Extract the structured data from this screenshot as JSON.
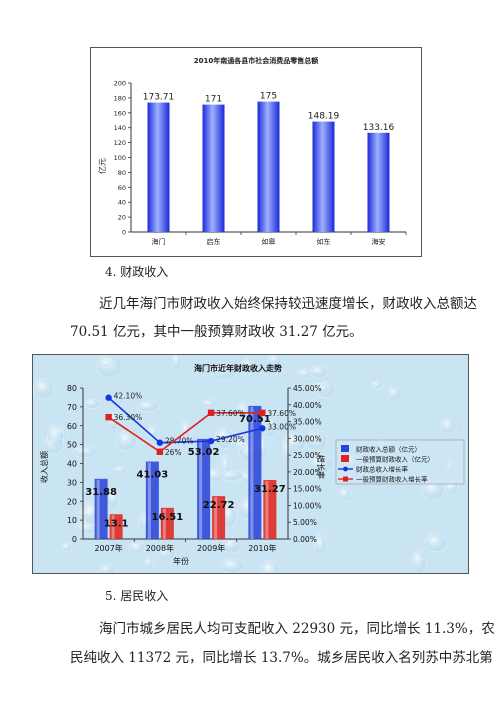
{
  "chart_data": [
    {
      "type": "bar",
      "title": "2010年南通各县市社会消费品零售总额",
      "ylabel": "亿元",
      "xlabel": "",
      "categories": [
        "海门",
        "启东",
        "如皋",
        "如东",
        "海安"
      ],
      "values": [
        173.71,
        171,
        175,
        148.19,
        133.16
      ],
      "value_labels": [
        "173.71",
        "171",
        "175",
        "148.19",
        "133.16"
      ],
      "ylim": [
        0,
        200
      ],
      "yticks": [
        "0",
        "20",
        "40",
        "60",
        "80",
        "100",
        "120",
        "140",
        "160",
        "180",
        "200"
      ],
      "bar_color": "#2a3ff0",
      "grid": false
    },
    {
      "type": "bar+line",
      "title": "海门市近年财政收入走势",
      "xlabel": "年份",
      "ylabel_left": "收入总额",
      "ylabel_right": "增长率",
      "categories": [
        "2007年",
        "2008年",
        "2009年",
        "2010年"
      ],
      "ylim_left": [
        0,
        80
      ],
      "yticks_left": [
        "0",
        "10",
        "20",
        "30",
        "40",
        "50",
        "60",
        "70",
        "80"
      ],
      "ylim_right": [
        0,
        45
      ],
      "yticks_right": [
        "0.00%",
        "5.00%",
        "10.00%",
        "15.00%",
        "20.00%",
        "25.00%",
        "30.00%",
        "35.00%",
        "40.00%",
        "45.00%"
      ],
      "bar_series": [
        {
          "name": "财政收入总额（亿元）",
          "values": [
            31.88,
            41.03,
            53.02,
            70.51
          ],
          "labels": [
            "31.88",
            "41.03",
            "53.02",
            "70.51"
          ],
          "color": "#2b46d8"
        },
        {
          "name": "一般预算财政收入（亿元）",
          "values": [
            13.1,
            16.51,
            22.72,
            31.27
          ],
          "labels": [
            "13.1",
            "16.51",
            "22.72",
            "31.27"
          ],
          "color": "#e0241e"
        }
      ],
      "line_series": [
        {
          "name": "财政总收入增长率",
          "values": [
            42.1,
            28.7,
            29.2,
            33.0
          ],
          "labels": [
            "42.10%",
            "28.70%",
            "29.20%",
            "33.00%"
          ],
          "color": "#1a33e0"
        },
        {
          "name": "一般预算财政收入增长率",
          "values": [
            36.3,
            26,
            37.6,
            37.6
          ],
          "labels": [
            "36.30%",
            "26%",
            "37.60%",
            "37.60%"
          ],
          "color": "#e02020"
        }
      ],
      "legend_position": "right"
    }
  ],
  "section4": {
    "heading": "4.  财政收入"
  },
  "para1": {
    "line1": "近几年海门市财政收入始终保持较迅速度增长，财政收入总额达",
    "line2": "70.51 亿元，其中一般预算财政收 31.27 亿元。"
  },
  "section5": {
    "heading": "5.  居民收入"
  },
  "para2": {
    "line1": "海门市城乡居民人均可支配收入 22930 元，同比增长 11.3%，农",
    "line2": "民纯收入 11372 元，同比增长 13.7%。城乡居民收入名列苏中苏北第"
  }
}
